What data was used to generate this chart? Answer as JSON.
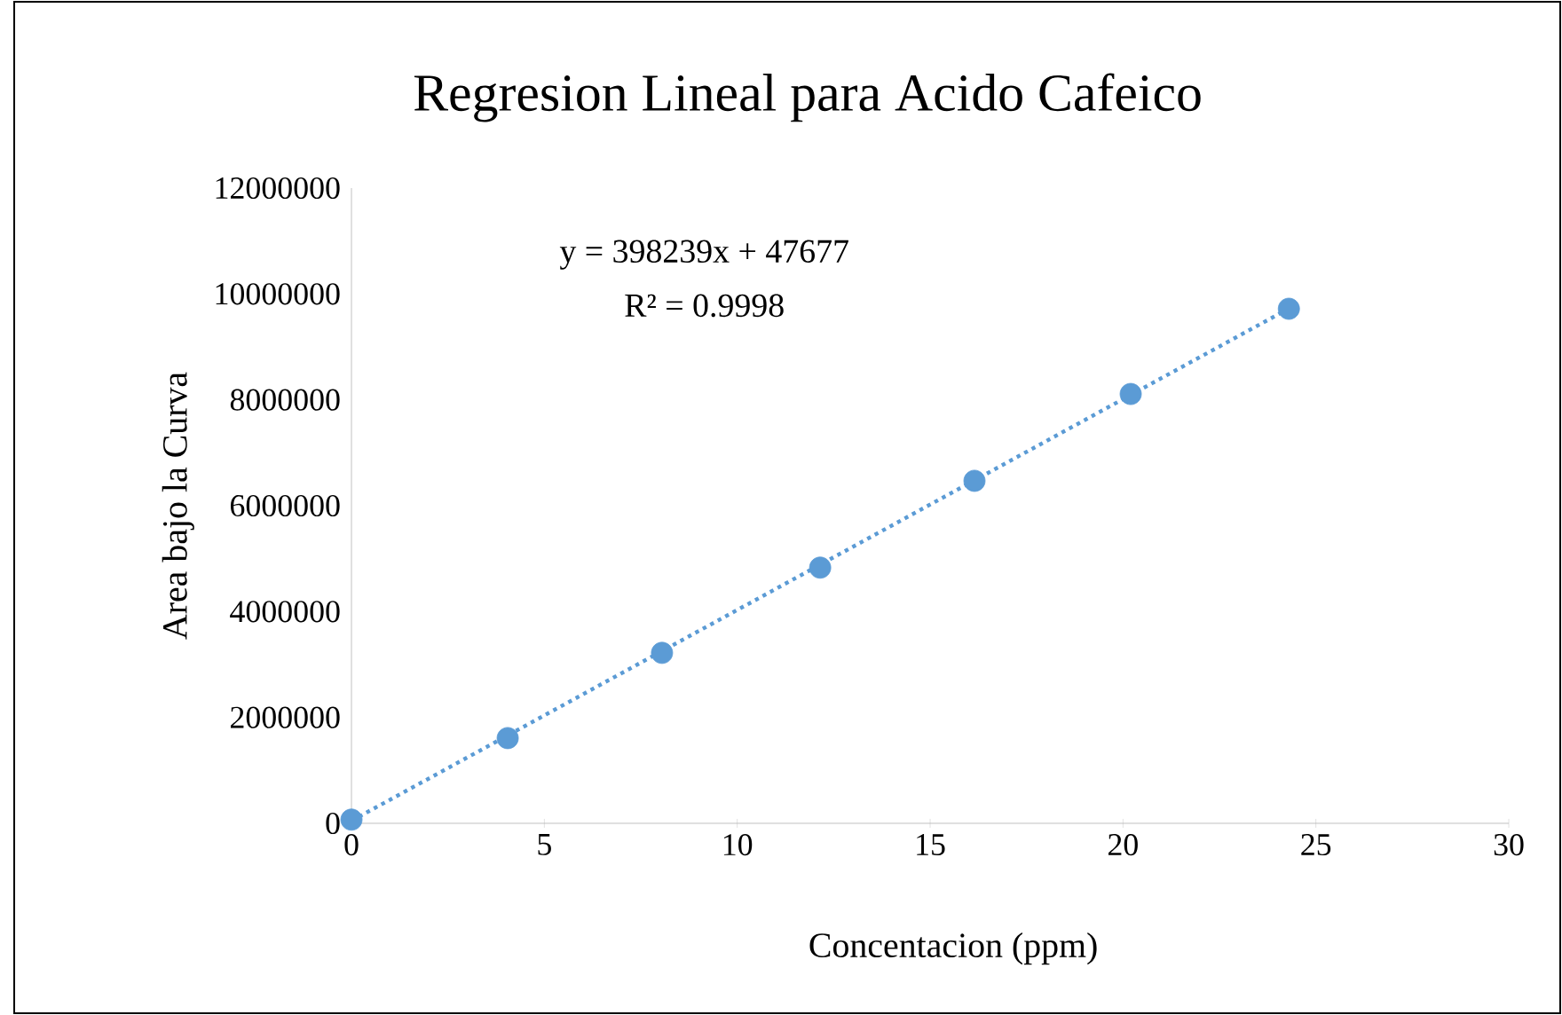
{
  "chart_data": {
    "type": "scatter",
    "title": "Regresion Lineal para Acido Cafeico",
    "xlabel": "Concentacion (ppm)",
    "ylabel": "Area bajo la Curva",
    "xlim": [
      0,
      30
    ],
    "xticks": [
      0,
      5,
      10,
      15,
      20,
      25,
      30
    ],
    "ylim": [
      0,
      12000000
    ],
    "yticks": [
      0,
      2000000,
      4000000,
      6000000,
      8000000,
      10000000,
      12000000
    ],
    "grid": false,
    "marker": "circle",
    "annotations": [
      "y = 398239x + 47677",
      "R² = 0.9998"
    ],
    "series": [
      {
        "color": "#5b9bd5",
        "x": [
          0,
          4.05,
          8.05,
          12.15,
          16.15,
          20.2,
          24.3
        ],
        "values": [
          70000,
          1610000,
          3220000,
          4830000,
          6470000,
          8110000,
          9720000
        ]
      },
      {
        "type": "line",
        "color": "#5b9bd5",
        "line_style": "dotted",
        "marker": "none",
        "x": [
          0,
          24.3
        ],
        "values": [
          48000,
          9725000
        ]
      }
    ]
  }
}
